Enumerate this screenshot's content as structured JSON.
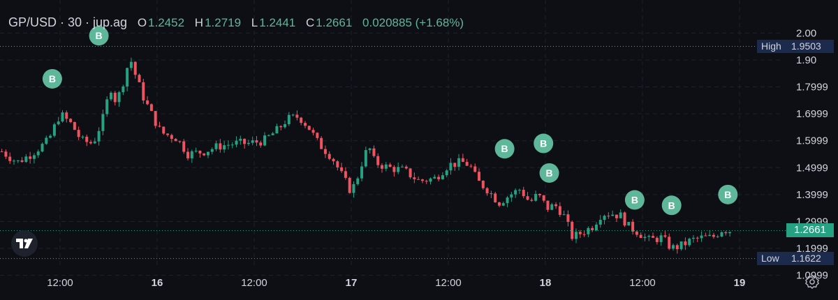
{
  "legend": {
    "symbol": "GP/USD · 30 · jup.ag",
    "o_key": "O",
    "o_val": "1.2452",
    "h_key": "H",
    "h_val": "1.2719",
    "l_key": "L",
    "l_val": "1.2441",
    "c_key": "C",
    "c_val": "1.2661",
    "change": "0.020885 (+1.68%)"
  },
  "tags": {
    "high_label": "High",
    "high_value": "1.9503",
    "low_label": "Low",
    "low_value": "1.1622",
    "last_price": "1.2661"
  },
  "colors": {
    "up": "#26a283",
    "down": "#ef5360",
    "marker": "#5fb79a",
    "background": "#0d0f14",
    "grid": "#1e222d",
    "text": "#d1d4dc",
    "tag_bg": "#1c2a4e"
  },
  "icons": {
    "logo": "tradingview-logo-icon",
    "settings": "gear-icon"
  },
  "chart_data": {
    "type": "candlestick",
    "interval": "30",
    "y_ticks": [
      "2.00",
      "1.90",
      "1.7999",
      "1.6999",
      "1.5999",
      "1.4999",
      "1.3999",
      "1.2999",
      "1.1999",
      "1.0999"
    ],
    "x_ticks": [
      "12:00",
      "16",
      "12:00",
      "17",
      "12:00",
      "18",
      "12:00",
      "19"
    ],
    "ylim": [
      1.06,
      2.045
    ],
    "high": 1.9503,
    "low": 1.1622,
    "last": 1.2661,
    "ohlc": {
      "open": 1.2452,
      "high": 1.2719,
      "low": 1.2441,
      "close": 1.2661
    },
    "close_path": [
      [
        15.2,
        1.56
      ],
      [
        15.28,
        1.52
      ],
      [
        15.35,
        1.55
      ],
      [
        15.44,
        1.6
      ],
      [
        15.5,
        1.7
      ],
      [
        15.56,
        1.66
      ],
      [
        15.61,
        1.6
      ],
      [
        15.67,
        1.59
      ],
      [
        15.72,
        1.68
      ],
      [
        15.76,
        1.8
      ],
      [
        15.79,
        1.74
      ],
      [
        15.83,
        1.83
      ],
      [
        15.86,
        1.91
      ],
      [
        15.89,
        1.84
      ],
      [
        15.93,
        1.76
      ],
      [
        15.97,
        1.7
      ],
      [
        16.02,
        1.63
      ],
      [
        16.1,
        1.61
      ],
      [
        16.16,
        1.55
      ],
      [
        16.24,
        1.56
      ],
      [
        16.32,
        1.58
      ],
      [
        16.4,
        1.59
      ],
      [
        16.47,
        1.59
      ],
      [
        16.55,
        1.6
      ],
      [
        16.62,
        1.64
      ],
      [
        16.67,
        1.68
      ],
      [
        16.73,
        1.69
      ],
      [
        16.78,
        1.65
      ],
      [
        16.83,
        1.59
      ],
      [
        16.9,
        1.54
      ],
      [
        16.96,
        1.46
      ],
      [
        17.0,
        1.41
      ],
      [
        17.03,
        1.46
      ],
      [
        17.06,
        1.53
      ],
      [
        17.09,
        1.58
      ],
      [
        17.12,
        1.52
      ],
      [
        17.19,
        1.5
      ],
      [
        17.27,
        1.49
      ],
      [
        17.35,
        1.45
      ],
      [
        17.43,
        1.46
      ],
      [
        17.5,
        1.51
      ],
      [
        17.57,
        1.52
      ],
      [
        17.61,
        1.51
      ],
      [
        17.65,
        1.45
      ],
      [
        17.7,
        1.42
      ],
      [
        17.76,
        1.37
      ],
      [
        17.82,
        1.4
      ],
      [
        17.87,
        1.42
      ],
      [
        17.92,
        1.37
      ],
      [
        17.96,
        1.4
      ],
      [
        18.01,
        1.35
      ],
      [
        18.05,
        1.36
      ],
      [
        18.09,
        1.33
      ],
      [
        18.14,
        1.24
      ],
      [
        18.19,
        1.26
      ],
      [
        18.24,
        1.28
      ],
      [
        18.29,
        1.33
      ],
      [
        18.34,
        1.33
      ],
      [
        18.39,
        1.32
      ],
      [
        18.43,
        1.28
      ],
      [
        18.48,
        1.26
      ],
      [
        18.53,
        1.23
      ],
      [
        18.6,
        1.24
      ],
      [
        18.65,
        1.2
      ],
      [
        18.7,
        1.21
      ],
      [
        18.75,
        1.23
      ],
      [
        18.81,
        1.24
      ],
      [
        18.86,
        1.24
      ],
      [
        18.91,
        1.27
      ],
      [
        18.95,
        1.2661
      ]
    ],
    "markers": [
      {
        "x": 15.46,
        "y": 1.83,
        "label": "B"
      },
      {
        "x": 15.7,
        "y": 1.99,
        "label": "B"
      },
      {
        "x": 17.79,
        "y": 1.57,
        "label": "B"
      },
      {
        "x": 17.99,
        "y": 1.59,
        "label": "B"
      },
      {
        "x": 18.02,
        "y": 1.48,
        "label": "B"
      },
      {
        "x": 18.46,
        "y": 1.38,
        "label": "B"
      },
      {
        "x": 18.65,
        "y": 1.36,
        "label": "B"
      },
      {
        "x": 18.94,
        "y": 1.4,
        "label": "B"
      }
    ]
  }
}
